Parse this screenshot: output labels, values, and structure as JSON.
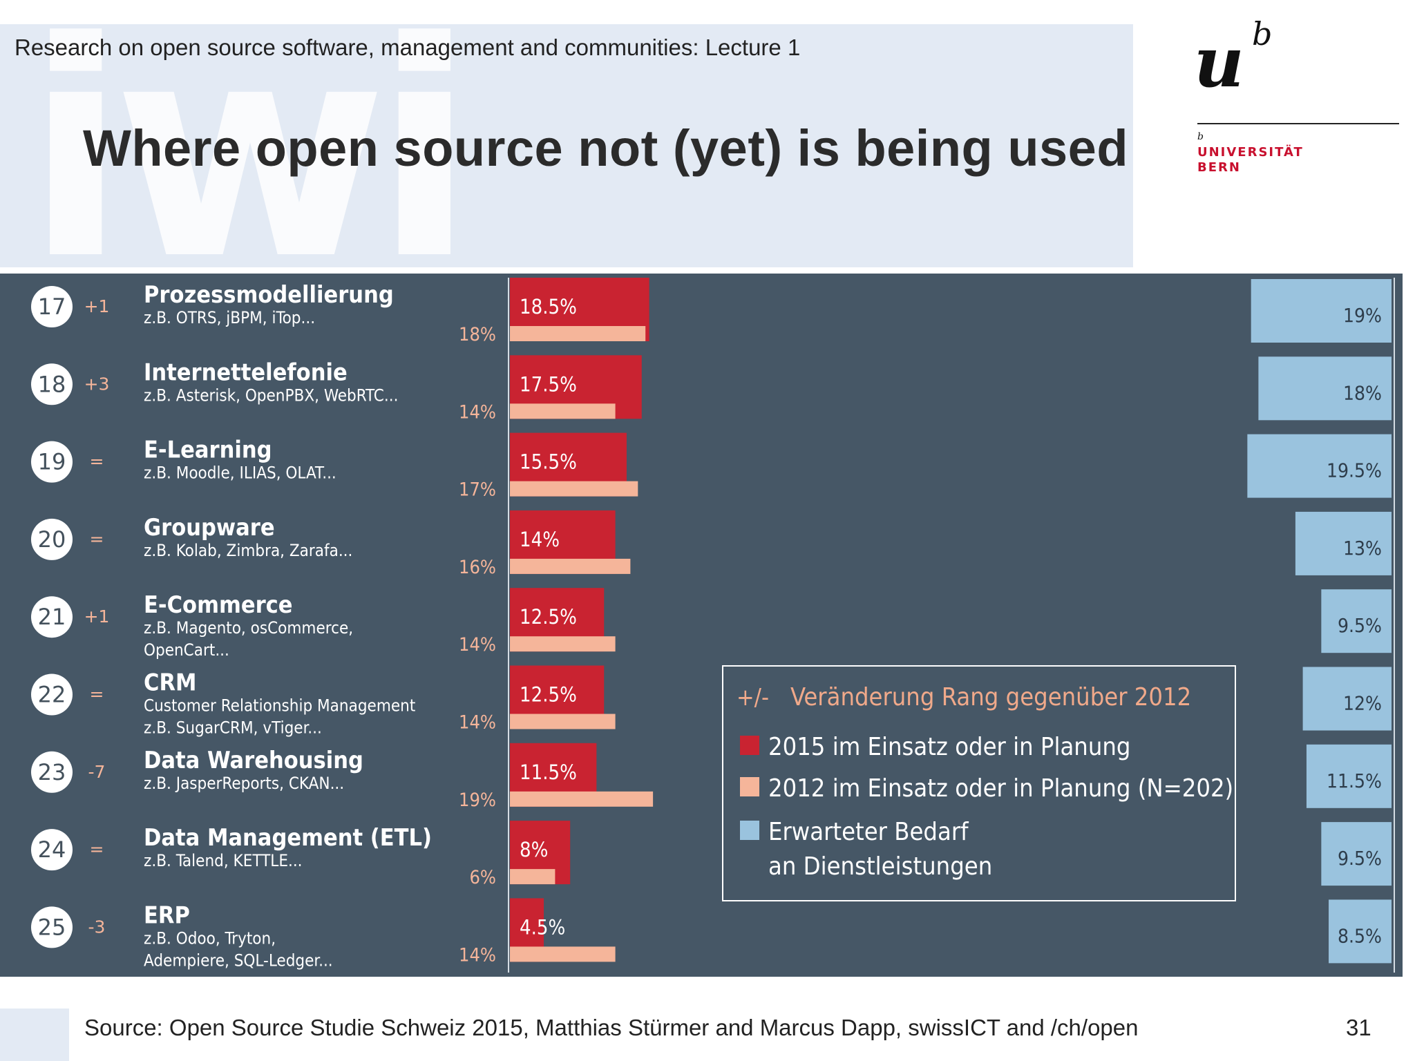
{
  "slide": {
    "lecture": "Research on open source software, management and communities: Lecture 1",
    "title": "Where open source not (yet) is being used",
    "watermark": "iwi",
    "logo": {
      "u": "u",
      "b": "b",
      "b_small": "b",
      "line1": "UNIVERSITÄT",
      "line2": "BERN"
    },
    "source": "Source: Open Source Studie Schweiz 2015, Matthias Stürmer and Marcus Dapp, swissICT and /ch/open",
    "page_number": "31"
  },
  "colors": {
    "panel": "#465766",
    "bar_2015": "#c92331",
    "bar_2012": "#f5b59a",
    "bar_demand": "#9ac3de",
    "text_light": "#ffffff",
    "label_2012": "#f5b59a",
    "legend_title": "#f0a98a"
  },
  "chart_data": {
    "type": "bar",
    "orientation": "horizontal",
    "series": [
      {
        "name": "2015 im Einsatz oder in Planung",
        "values": [
          18.5,
          17.5,
          15.5,
          14,
          12.5,
          12.5,
          11.5,
          8,
          4.5
        ],
        "labels": [
          "18.5%",
          "17.5%",
          "15.5%",
          "14%",
          "12.5%",
          "12.5%",
          "11.5%",
          "8%",
          "4.5%"
        ]
      },
      {
        "name": "2012 im Einsatz oder in Planung (N=202)",
        "values": [
          18,
          14,
          17,
          16,
          14,
          14,
          19,
          6,
          14
        ],
        "labels": [
          "18%",
          "14%",
          "17%",
          "16%",
          "14%",
          "14%",
          "19%",
          "6%",
          "14%"
        ]
      },
      {
        "name": "Erwarteter Bedarf an Dienstleistungen",
        "values": [
          19,
          18,
          19.5,
          13,
          9.5,
          12,
          11.5,
          9.5,
          8.5
        ],
        "labels": [
          "19%",
          "18%",
          "19.5%",
          "13%",
          "9.5%",
          "12%",
          "11.5%",
          "9.5%",
          "8.5%"
        ]
      }
    ],
    "rows": [
      {
        "rank": "17",
        "change": "+1",
        "name": "Prozessmodellierung",
        "desc": [
          "z.B. OTRS, jBPM, iTop..."
        ]
      },
      {
        "rank": "18",
        "change": "+3",
        "name": "Internettelefonie",
        "desc": [
          "z.B. Asterisk, OpenPBX, WebRTC..."
        ]
      },
      {
        "rank": "19",
        "change": "=",
        "name": "E-Learning",
        "desc": [
          "z.B. Moodle, ILIAS, OLAT..."
        ]
      },
      {
        "rank": "20",
        "change": "=",
        "name": "Groupware",
        "desc": [
          "z.B. Kolab, Zimbra, Zarafa..."
        ]
      },
      {
        "rank": "21",
        "change": "+1",
        "name": "E-Commerce",
        "desc": [
          "z.B. Magento, osCommerce,",
          "OpenCart..."
        ]
      },
      {
        "rank": "22",
        "change": "=",
        "name": "CRM",
        "desc": [
          "Customer Relationship Management",
          "z.B. SugarCRM, vTiger..."
        ]
      },
      {
        "rank": "23",
        "change": "-7",
        "name": "Data Warehousing",
        "desc": [
          "z.B. JasperReports, CKAN..."
        ]
      },
      {
        "rank": "24",
        "change": "=",
        "name": "Data Management (ETL)",
        "desc": [
          "z.B. Talend, KETTLE..."
        ]
      },
      {
        "rank": "25",
        "change": "-3",
        "name": "ERP",
        "desc": [
          "z.B. Odoo, Tryton,",
          "Adempiere, SQL-Ledger..."
        ]
      }
    ],
    "legend": {
      "title_prefix": "+/-",
      "title": "Veränderung Rang gegenüber 2012",
      "items": [
        {
          "label": "2015 im Einsatz oder in Planung"
        },
        {
          "label": "2012 im Einsatz oder in Planung (N=202)"
        },
        {
          "label": "Erwarteter Bedarf",
          "label2": "an Dienstleistungen"
        }
      ]
    }
  }
}
